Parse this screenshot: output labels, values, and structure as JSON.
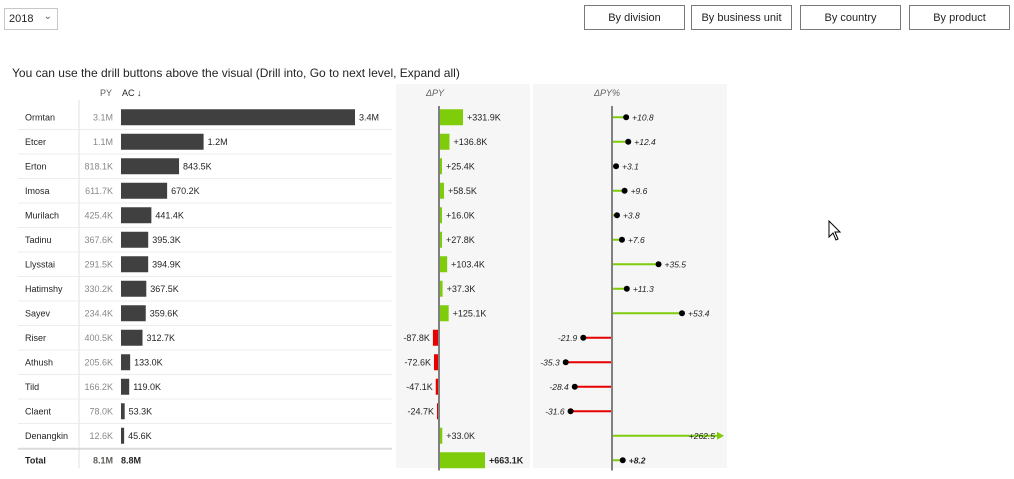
{
  "filters": {
    "year_selected": "2018"
  },
  "drill_buttons": [
    "By division",
    "By business unit",
    "By country",
    "By product"
  ],
  "hint_text": "You can use the drill buttons above the visual (Drill into, Go to next level, Expand all)",
  "colors": {
    "ac_bar": "#404040",
    "positive": "#7fcc0a",
    "negative": "#e60000",
    "panel_bg": "#f6f6f6",
    "axis": "#808080"
  },
  "chart_data": {
    "type": "table",
    "headers": {
      "py": "PY",
      "ac": "AC ↓",
      "dpy": "ΔPY",
      "dpy_pct": "ΔPY%"
    },
    "rows": [
      {
        "name": "Ormtan",
        "py": 3.1,
        "py_label": "3.1M",
        "ac": 3.4,
        "ac_label": "3.4M",
        "dpy": 331.9,
        "dpy_label": "+331.9K",
        "pct": 10.8,
        "pct_label": "+10.8"
      },
      {
        "name": "Etcer",
        "py": 1.1,
        "py_label": "1.1M",
        "ac": 1.2,
        "ac_label": "1.2M",
        "dpy": 136.8,
        "dpy_label": "+136.8K",
        "pct": 12.4,
        "pct_label": "+12.4"
      },
      {
        "name": "Erton",
        "py": 0.8181,
        "py_label": "818.1K",
        "ac": 0.8435,
        "ac_label": "843.5K",
        "dpy": 25.4,
        "dpy_label": "+25.4K",
        "pct": 3.1,
        "pct_label": "+3.1"
      },
      {
        "name": "Imosa",
        "py": 0.6117,
        "py_label": "611.7K",
        "ac": 0.6702,
        "ac_label": "670.2K",
        "dpy": 58.5,
        "dpy_label": "+58.5K",
        "pct": 9.6,
        "pct_label": "+9.6"
      },
      {
        "name": "Murilach",
        "py": 0.4254,
        "py_label": "425.4K",
        "ac": 0.4414,
        "ac_label": "441.4K",
        "dpy": 16.0,
        "dpy_label": "+16.0K",
        "pct": 3.8,
        "pct_label": "+3.8"
      },
      {
        "name": "Tadinu",
        "py": 0.3676,
        "py_label": "367.6K",
        "ac": 0.3953,
        "ac_label": "395.3K",
        "dpy": 27.8,
        "dpy_label": "+27.8K",
        "pct": 7.6,
        "pct_label": "+7.6"
      },
      {
        "name": "Llysstai",
        "py": 0.2915,
        "py_label": "291.5K",
        "ac": 0.3949,
        "ac_label": "394.9K",
        "dpy": 103.4,
        "dpy_label": "+103.4K",
        "pct": 35.5,
        "pct_label": "+35.5"
      },
      {
        "name": "Hatimshy",
        "py": 0.3302,
        "py_label": "330.2K",
        "ac": 0.3675,
        "ac_label": "367.5K",
        "dpy": 37.3,
        "dpy_label": "+37.3K",
        "pct": 11.3,
        "pct_label": "+11.3"
      },
      {
        "name": "Sayev",
        "py": 0.2344,
        "py_label": "234.4K",
        "ac": 0.3596,
        "ac_label": "359.6K",
        "dpy": 125.1,
        "dpy_label": "+125.1K",
        "pct": 53.4,
        "pct_label": "+53.4"
      },
      {
        "name": "Riser",
        "py": 0.4005,
        "py_label": "400.5K",
        "ac": 0.3127,
        "ac_label": "312.7K",
        "dpy": -87.8,
        "dpy_label": "-87.8K",
        "pct": -21.9,
        "pct_label": "-21.9"
      },
      {
        "name": "Athush",
        "py": 0.2056,
        "py_label": "205.6K",
        "ac": 0.133,
        "ac_label": "133.0K",
        "dpy": -72.6,
        "dpy_label": "-72.6K",
        "pct": -35.3,
        "pct_label": "-35.3"
      },
      {
        "name": "Tild",
        "py": 0.1662,
        "py_label": "166.2K",
        "ac": 0.119,
        "ac_label": "119.0K",
        "dpy": -47.1,
        "dpy_label": "-47.1K",
        "pct": -28.4,
        "pct_label": "-28.4"
      },
      {
        "name": "Claent",
        "py": 0.078,
        "py_label": "78.0K",
        "ac": 0.0533,
        "ac_label": "53.3K",
        "dpy": -24.7,
        "dpy_label": "-24.7K",
        "pct": -31.6,
        "pct_label": "-31.6"
      },
      {
        "name": "Denangkin",
        "py": 0.0126,
        "py_label": "12.6K",
        "ac": 0.0456,
        "ac_label": "45.6K",
        "dpy": 33.0,
        "dpy_label": "+33.0K",
        "pct": 262.5,
        "pct_label": "+262.5",
        "pct_capped": true
      }
    ],
    "total": {
      "name": "Total",
      "py": 8.1,
      "py_label": "8.1M",
      "ac": 8.8,
      "ac_label": "8.8M",
      "dpy": 663.1,
      "dpy_label": "+663.1K",
      "pct": 8.2,
      "pct_label": "+8.2"
    }
  }
}
